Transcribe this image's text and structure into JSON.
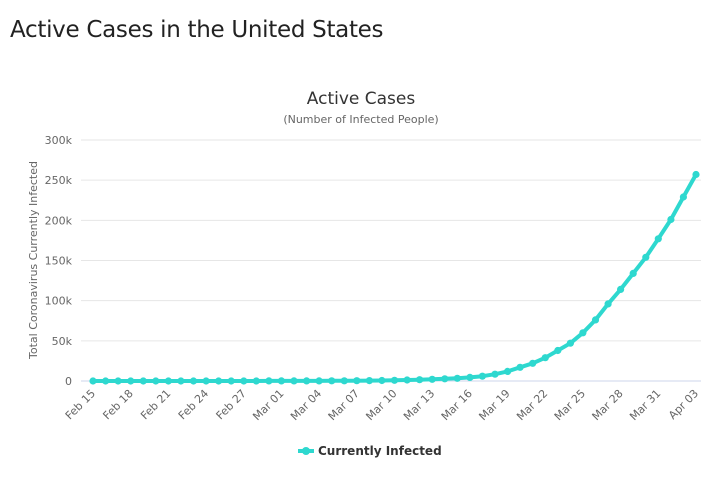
{
  "page": {
    "heading": "Active Cases in the United States"
  },
  "chart_data": {
    "type": "line",
    "title": "Active Cases",
    "subtitle": "(Number of Infected People)",
    "xlabel": "",
    "ylabel": "Total Coronavirus Currently Infected",
    "ylim": [
      0,
      300000
    ],
    "yticks": [
      0,
      50000,
      100000,
      150000,
      200000,
      250000,
      300000
    ],
    "ytick_labels": [
      "0",
      "50k",
      "100k",
      "150k",
      "200k",
      "250k",
      "300k"
    ],
    "xtick_labels": [
      "Feb 15",
      "Feb 18",
      "Feb 21",
      "Feb 24",
      "Feb 27",
      "Mar 01",
      "Mar 04",
      "Mar 07",
      "Mar 10",
      "Mar 13",
      "Mar 16",
      "Mar 19",
      "Mar 22",
      "Mar 25",
      "Mar 28",
      "Mar 31",
      "Apr 03"
    ],
    "xtick_every": 3,
    "grid": true,
    "legend": "bottom-center",
    "color": "#2ed8cf",
    "categories": [
      "Feb 15",
      "Feb 16",
      "Feb 17",
      "Feb 18",
      "Feb 19",
      "Feb 20",
      "Feb 21",
      "Feb 22",
      "Feb 23",
      "Feb 24",
      "Feb 25",
      "Feb 26",
      "Feb 27",
      "Feb 28",
      "Feb 29",
      "Mar 01",
      "Mar 02",
      "Mar 03",
      "Mar 04",
      "Mar 05",
      "Mar 06",
      "Mar 07",
      "Mar 08",
      "Mar 09",
      "Mar 10",
      "Mar 11",
      "Mar 12",
      "Mar 13",
      "Mar 14",
      "Mar 15",
      "Mar 16",
      "Mar 17",
      "Mar 18",
      "Mar 19",
      "Mar 20",
      "Mar 21",
      "Mar 22",
      "Mar 23",
      "Mar 24",
      "Mar 25",
      "Mar 26",
      "Mar 27",
      "Mar 28",
      "Mar 29",
      "Mar 30",
      "Mar 31",
      "Apr 01",
      "Apr 02",
      "Apr 03"
    ],
    "series": [
      {
        "name": "Currently Infected",
        "values": [
          12,
          12,
          12,
          12,
          12,
          12,
          12,
          30,
          30,
          30,
          50,
          50,
          55,
          60,
          65,
          70,
          90,
          110,
          140,
          200,
          250,
          400,
          500,
          600,
          900,
          1200,
          1600,
          2100,
          2700,
          3400,
          4500,
          6000,
          8500,
          12000,
          17000,
          22000,
          29000,
          38000,
          47000,
          60000,
          76000,
          96000,
          114000,
          134000,
          154000,
          177000,
          201000,
          229000,
          257000
        ]
      }
    ]
  }
}
